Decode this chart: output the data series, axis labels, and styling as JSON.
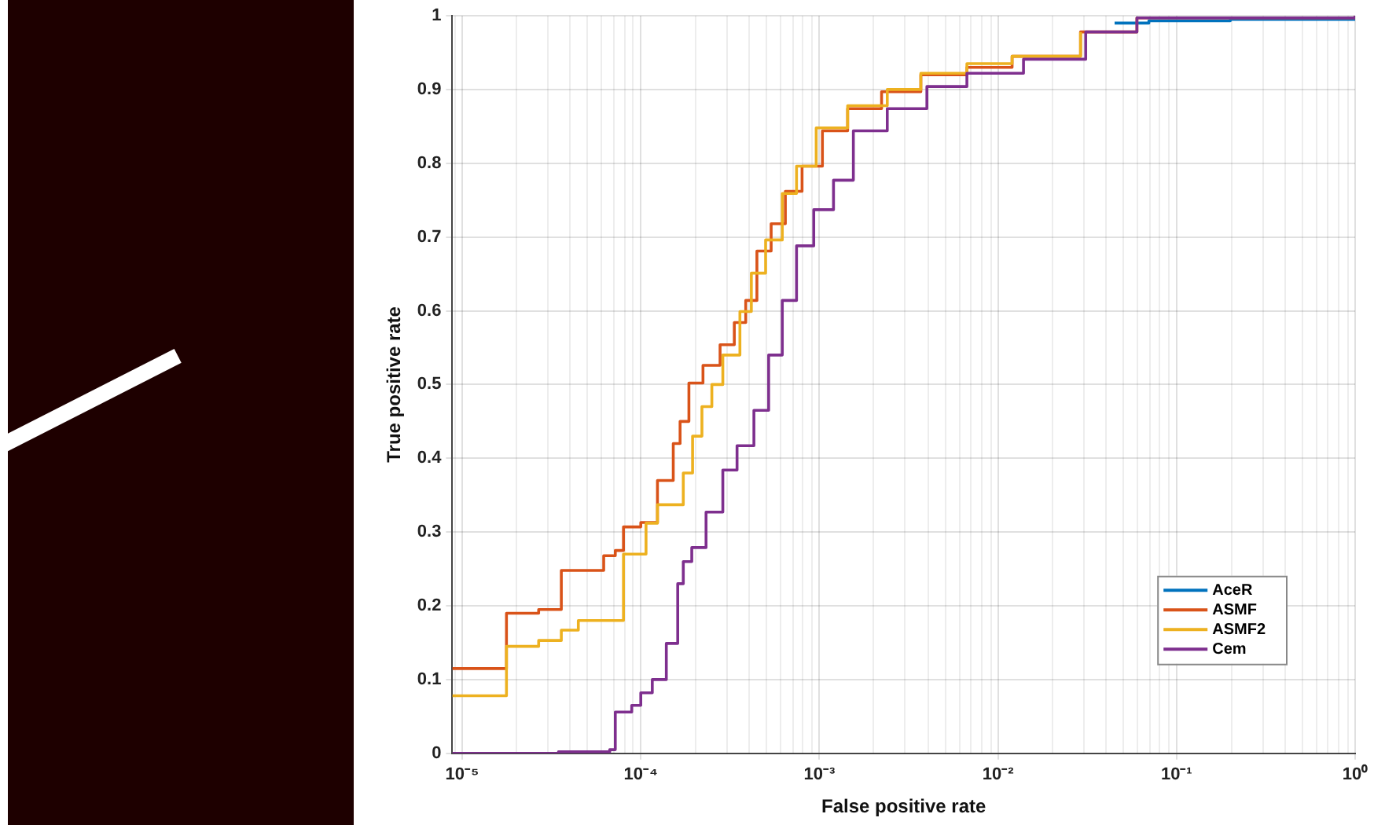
{
  "chart_data": {
    "type": "step",
    "xlabel": "False positive rate",
    "ylabel": "True positive rate",
    "log": "x",
    "grid": true,
    "legend": "bottom right",
    "xlim": [
      8.8e-06,
      1
    ],
    "ylim": [
      0,
      1
    ],
    "xticks": [
      {
        "value": 1e-05,
        "label": "10⁻⁵"
      },
      {
        "value": 0.0001,
        "label": "10⁻⁴"
      },
      {
        "value": 0.001,
        "label": "10⁻³"
      },
      {
        "value": 0.01,
        "label": "10⁻²"
      },
      {
        "value": 0.1,
        "label": "10⁻¹"
      },
      {
        "value": 1,
        "label": "10⁰"
      }
    ],
    "yticks": [
      0,
      0.1,
      0.2,
      0.3,
      0.4,
      0.5,
      0.6,
      0.7,
      0.8,
      0.9,
      1
    ],
    "series": [
      {
        "name": "AceR",
        "color": "#0072bd",
        "x": [
          0.045,
          0.07,
          0.2,
          1
        ],
        "values": [
          0.99,
          0.993,
          0.995,
          1
        ]
      },
      {
        "name": "ASMF",
        "color": "#d95319",
        "x": [
          8.8e-06,
          1.77e-05,
          2.68e-05,
          3.59e-05,
          6.2e-05,
          7.2e-05,
          8e-05,
          0.0001,
          0.000124,
          0.000152,
          0.000166,
          0.000186,
          0.000223,
          0.000278,
          0.000334,
          0.000387,
          0.000447,
          0.000537,
          0.000645,
          0.0008,
          0.00104,
          0.00144,
          0.00223,
          0.0037,
          0.0067,
          0.012,
          0.029,
          0.06,
          1
        ],
        "values": [
          0.115,
          0.19,
          0.195,
          0.248,
          0.268,
          0.275,
          0.307,
          0.313,
          0.37,
          0.42,
          0.45,
          0.502,
          0.526,
          0.554,
          0.584,
          0.614,
          0.681,
          0.718,
          0.762,
          0.796,
          0.844,
          0.874,
          0.897,
          0.92,
          0.93,
          0.945,
          0.978,
          0.997,
          1
        ]
      },
      {
        "name": "ASMF2",
        "color": "#edb120",
        "x": [
          8.8e-06,
          1.77e-05,
          2.68e-05,
          3.59e-05,
          4.47e-05,
          8e-05,
          0.000107,
          0.000124,
          0.000173,
          0.000195,
          0.00022,
          0.00025,
          0.000288,
          0.000359,
          0.000416,
          0.0005,
          0.00062,
          0.000745,
          0.00096,
          0.00144,
          0.0024,
          0.0037,
          0.0067,
          0.012,
          0.029
        ],
        "values": [
          0.078,
          0.145,
          0.153,
          0.167,
          0.18,
          0.27,
          0.312,
          0.337,
          0.38,
          0.43,
          0.47,
          0.5,
          0.54,
          0.599,
          0.651,
          0.696,
          0.759,
          0.796,
          0.848,
          0.878,
          0.9,
          0.922,
          0.935,
          0.945,
          0.978
        ]
      },
      {
        "name": "Cem",
        "color": "#7e2f8e",
        "x": [
          8.8e-06,
          3.46e-05,
          6.7e-05,
          7.2e-05,
          8.9e-05,
          0.0001,
          0.000116,
          0.000139,
          0.000161,
          0.000173,
          0.000193,
          0.000232,
          0.000288,
          0.000346,
          0.00043,
          0.00052,
          0.00062,
          0.000745,
          0.00093,
          0.0012,
          0.00155,
          0.0024,
          0.004,
          0.0067,
          0.0139,
          0.031,
          0.06,
          1
        ],
        "values": [
          0,
          0.002,
          0.005,
          0.056,
          0.065,
          0.082,
          0.1,
          0.149,
          0.23,
          0.26,
          0.279,
          0.327,
          0.384,
          0.417,
          0.465,
          0.54,
          0.614,
          0.688,
          0.737,
          0.777,
          0.844,
          0.874,
          0.904,
          0.922,
          0.941,
          0.978,
          0.997,
          1
        ]
      }
    ]
  }
}
